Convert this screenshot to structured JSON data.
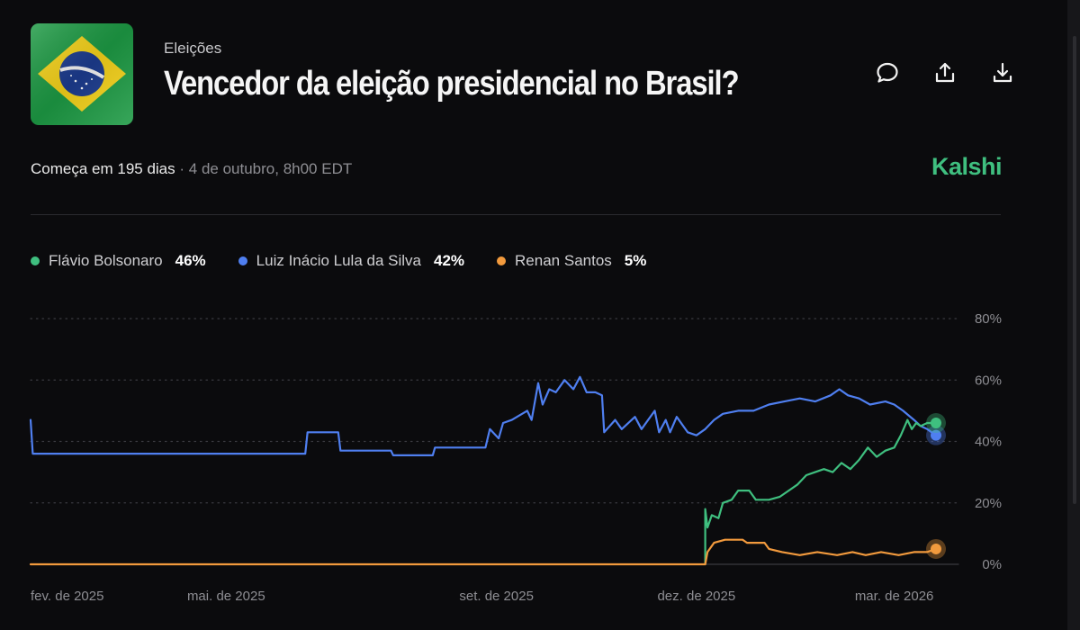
{
  "header": {
    "category": "Eleições",
    "title": "Vencedor da eleição presidencial no Brasil?",
    "flag_icon": "brazil-flag-icon",
    "actions": [
      {
        "name": "comment-button",
        "icon": "comment-icon"
      },
      {
        "name": "share-button",
        "icon": "share-icon"
      },
      {
        "name": "download-button",
        "icon": "download-icon"
      }
    ]
  },
  "meta": {
    "starts": "Começa em 195 dias",
    "separator": "·",
    "date": "4 de outubro, 8h00 EDT"
  },
  "brand": "Kalshi",
  "legend": [
    {
      "name": "Flávio Bolsonaro",
      "value": "46%",
      "color": "#3fbf7f"
    },
    {
      "name": "Luiz Inácio Lula da Silva",
      "value": "42%",
      "color": "#4f7ff0"
    },
    {
      "name": "Renan Santos",
      "value": "5%",
      "color": "#f29a3d"
    }
  ],
  "chart_data": {
    "type": "line",
    "x_start": "2025-02-01",
    "x_end": "2026-03-20",
    "x_tick_labels": [
      {
        "date": "2025-02-01",
        "label": "fev. de 2025"
      },
      {
        "date": "2025-05-01",
        "label": "mai. de 2025"
      },
      {
        "date": "2025-09-01",
        "label": "set. de 2025"
      },
      {
        "date": "2025-12-01",
        "label": "dez. de 2025"
      },
      {
        "date": "2026-03-01",
        "label": "mar. de 2026"
      }
    ],
    "y_ticks": [
      {
        "value": 0,
        "label": "0%"
      },
      {
        "value": 20,
        "label": "20%"
      },
      {
        "value": 40,
        "label": "40%"
      },
      {
        "value": 60,
        "label": "60%"
      },
      {
        "value": 80,
        "label": "80%"
      }
    ],
    "ylim": [
      0,
      80
    ],
    "grid": true,
    "series": [
      {
        "name": "Luiz Inácio Lula da Silva",
        "color": "#4f7ff0",
        "points": [
          [
            "2025-02-01",
            47
          ],
          [
            "2025-02-02",
            36
          ],
          [
            "2025-03-10",
            36
          ],
          [
            "2025-05-20",
            36
          ],
          [
            "2025-06-06",
            36
          ],
          [
            "2025-06-07",
            43
          ],
          [
            "2025-06-21",
            43
          ],
          [
            "2025-06-22",
            37
          ],
          [
            "2025-07-15",
            37
          ],
          [
            "2025-07-16",
            35.5
          ],
          [
            "2025-08-03",
            35.5
          ],
          [
            "2025-08-04",
            38
          ],
          [
            "2025-08-27",
            38
          ],
          [
            "2025-08-29",
            44
          ],
          [
            "2025-09-02",
            41
          ],
          [
            "2025-09-04",
            46
          ],
          [
            "2025-09-08",
            47
          ],
          [
            "2025-09-15",
            50
          ],
          [
            "2025-09-17",
            47
          ],
          [
            "2025-09-20",
            59
          ],
          [
            "2025-09-22",
            52
          ],
          [
            "2025-09-25",
            57
          ],
          [
            "2025-09-28",
            56
          ],
          [
            "2025-10-02",
            60
          ],
          [
            "2025-10-06",
            57
          ],
          [
            "2025-10-09",
            61
          ],
          [
            "2025-10-12",
            56
          ],
          [
            "2025-10-16",
            56
          ],
          [
            "2025-10-19",
            55
          ],
          [
            "2025-10-20",
            43
          ],
          [
            "2025-10-25",
            47
          ],
          [
            "2025-10-28",
            44
          ],
          [
            "2025-11-03",
            48
          ],
          [
            "2025-11-06",
            44
          ],
          [
            "2025-11-12",
            50
          ],
          [
            "2025-11-14",
            43
          ],
          [
            "2025-11-17",
            47
          ],
          [
            "2025-11-19",
            43
          ],
          [
            "2025-11-22",
            48
          ],
          [
            "2025-11-27",
            43
          ],
          [
            "2025-12-01",
            42
          ],
          [
            "2025-12-05",
            44
          ],
          [
            "2025-12-09",
            47
          ],
          [
            "2025-12-13",
            49
          ],
          [
            "2025-12-20",
            50
          ],
          [
            "2025-12-27",
            50
          ],
          [
            "2026-01-03",
            52
          ],
          [
            "2026-01-10",
            53
          ],
          [
            "2026-01-17",
            54
          ],
          [
            "2026-01-24",
            53
          ],
          [
            "2026-01-31",
            55
          ],
          [
            "2026-02-04",
            57
          ],
          [
            "2026-02-08",
            55
          ],
          [
            "2026-02-13",
            54
          ],
          [
            "2026-02-18",
            52
          ],
          [
            "2026-02-25",
            53
          ],
          [
            "2026-03-01",
            52
          ],
          [
            "2026-03-05",
            50
          ],
          [
            "2026-03-10",
            47
          ],
          [
            "2026-03-13",
            45
          ],
          [
            "2026-03-16",
            44
          ],
          [
            "2026-03-20",
            42
          ]
        ]
      },
      {
        "name": "Flávio Bolsonaro",
        "color": "#3fbf7f",
        "points": [
          [
            "2025-12-05",
            0
          ],
          [
            "2025-12-05",
            18
          ],
          [
            "2025-12-06",
            12
          ],
          [
            "2025-12-08",
            16
          ],
          [
            "2025-12-11",
            15
          ],
          [
            "2025-12-13",
            20
          ],
          [
            "2025-12-17",
            21
          ],
          [
            "2025-12-20",
            24
          ],
          [
            "2025-12-25",
            24
          ],
          [
            "2025-12-28",
            21
          ],
          [
            "2026-01-03",
            21
          ],
          [
            "2026-01-08",
            22
          ],
          [
            "2026-01-12",
            24
          ],
          [
            "2026-01-16",
            26
          ],
          [
            "2026-01-20",
            29
          ],
          [
            "2026-01-24",
            30
          ],
          [
            "2026-01-28",
            31
          ],
          [
            "2026-02-01",
            30
          ],
          [
            "2026-02-05",
            33
          ],
          [
            "2026-02-09",
            31
          ],
          [
            "2026-02-13",
            34
          ],
          [
            "2026-02-17",
            38
          ],
          [
            "2026-02-21",
            35
          ],
          [
            "2026-02-25",
            37
          ],
          [
            "2026-03-01",
            38
          ],
          [
            "2026-03-04",
            42
          ],
          [
            "2026-03-07",
            47
          ],
          [
            "2026-03-09",
            44
          ],
          [
            "2026-03-11",
            46
          ],
          [
            "2026-03-13",
            45
          ],
          [
            "2026-03-16",
            46
          ],
          [
            "2026-03-20",
            46
          ]
        ]
      },
      {
        "name": "Renan Santos",
        "color": "#f29a3d",
        "points": [
          [
            "2025-02-01",
            0
          ],
          [
            "2025-12-05",
            0
          ],
          [
            "2025-12-06",
            4
          ],
          [
            "2025-12-09",
            7
          ],
          [
            "2025-12-14",
            8
          ],
          [
            "2025-12-22",
            8
          ],
          [
            "2025-12-24",
            7
          ],
          [
            "2026-01-01",
            7
          ],
          [
            "2026-01-03",
            5
          ],
          [
            "2026-01-09",
            4
          ],
          [
            "2026-01-17",
            3
          ],
          [
            "2026-01-25",
            4
          ],
          [
            "2026-02-03",
            3
          ],
          [
            "2026-02-10",
            4
          ],
          [
            "2026-02-16",
            3
          ],
          [
            "2026-02-23",
            4
          ],
          [
            "2026-03-03",
            3
          ],
          [
            "2026-03-10",
            4
          ],
          [
            "2026-03-16",
            4
          ],
          [
            "2026-03-20",
            5
          ]
        ]
      }
    ]
  }
}
